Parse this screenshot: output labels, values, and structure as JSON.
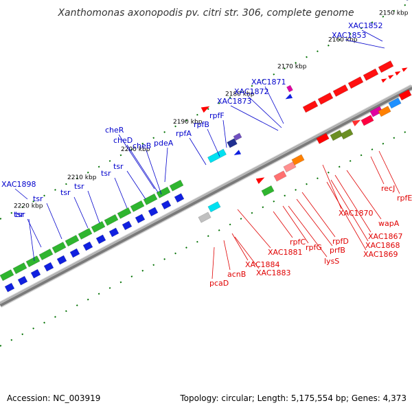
{
  "title": "Xanthomonas axonopodis pv. citri str. 306, complete genome",
  "footer": {
    "accession": "Accession: NC_003919",
    "topology": "Topology: circular; Length: 5,175,554 bp; Genes: 4,373"
  },
  "colors": {
    "forward_label": "#e00000",
    "reverse_label": "#0000cc",
    "backbone": "#808080",
    "tick": "#007000"
  },
  "ticks": [
    "2150 kbp",
    "2160 kbp",
    "2170 kbp",
    "2180 kbp",
    "2190 kbp",
    "2200 kbp",
    "2210 kbp",
    "2220 kbp"
  ],
  "labels_reverse": [
    "XAC1852",
    "XAC1853",
    "XAC1871",
    "XAC1872",
    "XAC1873",
    "rpfF",
    "rpfB",
    "rpfA",
    "pdeA",
    "cheR",
    "cheD",
    "cheB",
    "tsr",
    "tsr",
    "tsr",
    "tsr",
    "tsr",
    "tsr",
    "XAC1898",
    "tsr"
  ],
  "labels_forward": [
    "recJ",
    "rpfE",
    "XAC1870",
    "wapA",
    "XAC1867",
    "XAC1868",
    "XAC1869",
    "rpfD",
    "prfB",
    "lysS",
    "rpfC",
    "rpfG",
    "XAC1881",
    "XAC1884",
    "XAC1883",
    "acnB",
    "pcaD"
  ]
}
